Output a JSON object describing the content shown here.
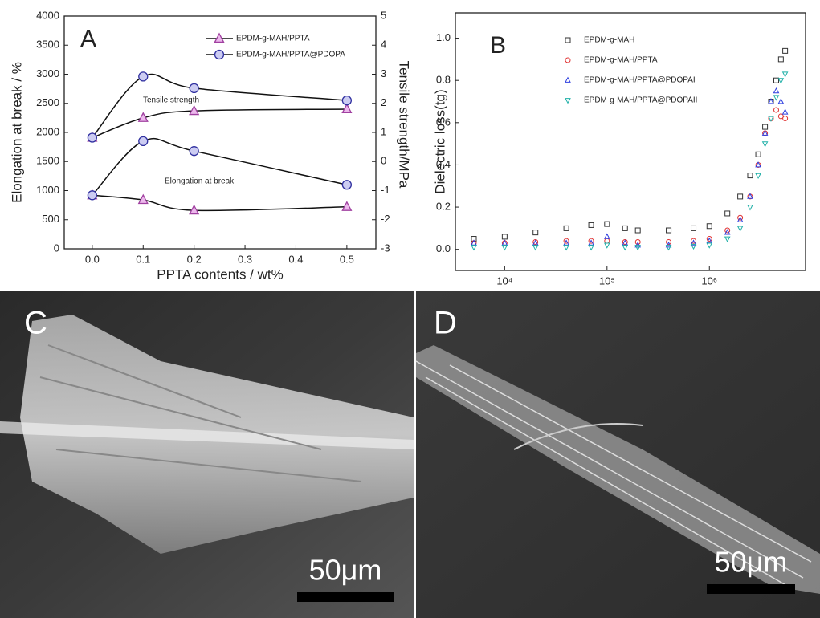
{
  "chart_data": [
    {
      "type": "line",
      "panel": "A",
      "xlabel": "PPTA contents / wt%",
      "ylabel": "Elongation at break / %",
      "y2label": "Tensile strength/MPa",
      "annotations": [
        "Tensile strength",
        "Elongation at break"
      ],
      "x": [
        0,
        0.1,
        0.2,
        0.5
      ],
      "xlim": [
        -0.055,
        0.557
      ],
      "xticks": [
        {
          "value": 0,
          "label": "0.0"
        },
        0.1,
        0.2,
        0.3,
        0.4,
        0.5
      ],
      "ylim": [
        0,
        4000
      ],
      "yticks": [
        0,
        500,
        1000,
        1500,
        2000,
        2500,
        3000,
        3500,
        4000
      ],
      "y2lim": [
        -3,
        5
      ],
      "y2ticks": [
        -3,
        -2,
        -1,
        0,
        1,
        2,
        3,
        4,
        5
      ],
      "series": [
        {
          "name": "EPDM-g-MAH/PPTA",
          "marker": "triangle",
          "color": "#a040a0",
          "fill": "#ecb8ec",
          "values": [
            920,
            840,
            660,
            720
          ],
          "y2_values": [
            0.82,
            1.5,
            1.74,
            1.8
          ]
        },
        {
          "name": "EPDM-g-MAH/PPTA@PDOPA",
          "marker": "circle",
          "color": "#3030a0",
          "fill": "#ccccf2",
          "values": [
            920,
            1850,
            1680,
            1100
          ],
          "y2_values": [
            0.82,
            2.92,
            2.52,
            2.1
          ]
        }
      ]
    },
    {
      "type": "scatter",
      "panel": "B",
      "ylabel": "Dielectric loss(tg)",
      "xlog": true,
      "x": [
        5000,
        10000,
        20000,
        40000,
        70000,
        100000,
        150000,
        200000,
        400000,
        700000,
        1000000,
        1500000,
        2000000,
        2500000,
        3000000,
        3500000,
        4000000,
        4500000,
        5000000,
        5500000
      ],
      "xlim": [
        3300,
        8700000
      ],
      "xticks": [
        {
          "value": 10000,
          "label": "10⁴"
        },
        {
          "value": 100000,
          "label": "10⁵"
        },
        {
          "value": 1000000,
          "label": "10⁶"
        }
      ],
      "ylim": [
        -0.1,
        1.12
      ],
      "yticks": [
        {
          "value": 0,
          "label": "0.0"
        },
        0.2,
        0.4,
        0.6,
        0.8,
        {
          "value": 1,
          "label": "1.0"
        }
      ],
      "series": [
        {
          "name": "EPDM-g-MAH",
          "marker": "square",
          "color": "#333333",
          "values": [
            0.05,
            0.06,
            0.08,
            0.1,
            0.115,
            0.12,
            0.1,
            0.09,
            0.09,
            0.1,
            0.11,
            0.17,
            0.25,
            0.35,
            0.45,
            0.58,
            0.7,
            0.8,
            0.9,
            0.94
          ]
        },
        {
          "name": "EPDM-g-MAH/PPTA",
          "marker": "circle",
          "color": "#e03030",
          "values": [
            0.03,
            0.03,
            0.035,
            0.04,
            0.04,
            0.04,
            0.035,
            0.035,
            0.035,
            0.04,
            0.05,
            0.09,
            0.15,
            0.25,
            0.4,
            0.55,
            0.62,
            0.66,
            0.63,
            0.62
          ]
        },
        {
          "name": "EPDM-g-MAH/PPTA@PDOPAI",
          "marker": "triangle",
          "color": "#3040e0",
          "values": [
            0.03,
            0.03,
            0.03,
            0.03,
            0.03,
            0.06,
            0.03,
            0.02,
            0.02,
            0.03,
            0.04,
            0.08,
            0.14,
            0.25,
            0.4,
            0.55,
            0.7,
            0.75,
            0.7,
            0.65
          ]
        },
        {
          "name": "EPDM-g-MAH/PPTA@PDOPAII",
          "marker": "triangle-down",
          "color": "#20b0a8",
          "values": [
            0.01,
            0.01,
            0.01,
            0.01,
            0.01,
            0.02,
            0.01,
            0.01,
            0.01,
            0.015,
            0.02,
            0.05,
            0.1,
            0.2,
            0.35,
            0.5,
            0.62,
            0.72,
            0.8,
            0.83
          ]
        }
      ]
    }
  ],
  "images": [
    {
      "label": "C",
      "scale": "50μm"
    },
    {
      "label": "D",
      "scale": "50μm"
    }
  ]
}
